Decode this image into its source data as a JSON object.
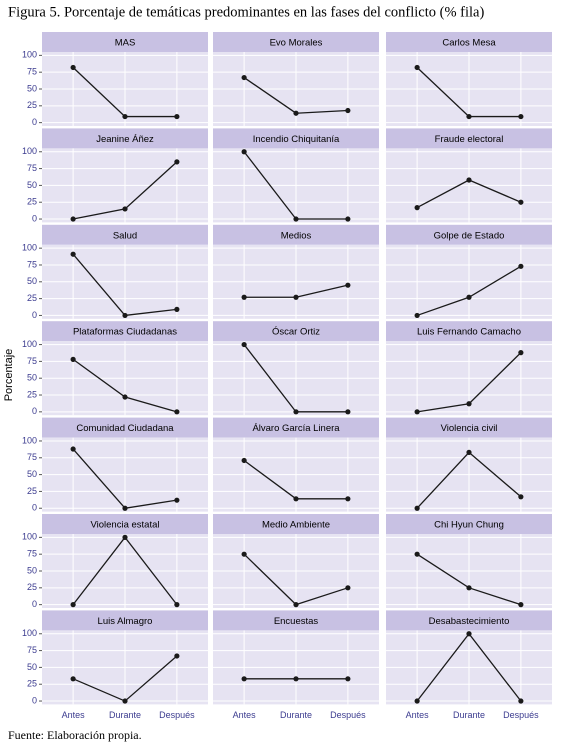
{
  "title": "Figura 5. Porcentaje de temáticas predominantes en las fases del conflicto (% fila)",
  "ylabel": "Porcentaje",
  "source": "Fuente: Elaboración propia.",
  "categories": [
    "Antes",
    "Durante",
    "Después"
  ],
  "ylim": [
    -5,
    105
  ],
  "yticks": [
    0,
    25,
    50,
    75,
    100
  ],
  "grid": true,
  "line_color": "#1a1a1a",
  "chart_data": [
    {
      "type": "line",
      "title": "MAS",
      "values": [
        82,
        9,
        9
      ]
    },
    {
      "type": "line",
      "title": "Evo Morales",
      "values": [
        67,
        14,
        18
      ]
    },
    {
      "type": "line",
      "title": "Carlos Mesa",
      "values": [
        82,
        9,
        9
      ]
    },
    {
      "type": "line",
      "title": "Jeanine Áñez",
      "values": [
        0,
        15,
        85
      ]
    },
    {
      "type": "line",
      "title": "Incendio Chiquitanía",
      "values": [
        100,
        0,
        0
      ]
    },
    {
      "type": "line",
      "title": "Fraude electoral",
      "values": [
        17,
        58,
        25
      ]
    },
    {
      "type": "line",
      "title": "Salud",
      "values": [
        91,
        0,
        9
      ]
    },
    {
      "type": "line",
      "title": "Medios",
      "values": [
        27,
        27,
        45
      ]
    },
    {
      "type": "line",
      "title": "Golpe de Estado",
      "values": [
        0,
        27,
        73
      ]
    },
    {
      "type": "line",
      "title": "Plataformas Ciudadanas",
      "values": [
        78,
        22,
        0
      ]
    },
    {
      "type": "line",
      "title": "Óscar Ortiz",
      "values": [
        100,
        0,
        0
      ]
    },
    {
      "type": "line",
      "title": "Luis Fernando Camacho",
      "values": [
        0,
        12,
        88
      ]
    },
    {
      "type": "line",
      "title": "Comunidad Ciudadana",
      "values": [
        88,
        0,
        12
      ]
    },
    {
      "type": "line",
      "title": "Álvaro García Linera",
      "values": [
        71,
        14,
        14
      ]
    },
    {
      "type": "line",
      "title": "Violencia civil",
      "values": [
        0,
        83,
        17
      ]
    },
    {
      "type": "line",
      "title": "Violencia estatal",
      "values": [
        0,
        100,
        0
      ]
    },
    {
      "type": "line",
      "title": "Medio Ambiente",
      "values": [
        75,
        0,
        25
      ]
    },
    {
      "type": "line",
      "title": "Chi Hyun Chung",
      "values": [
        75,
        25,
        0
      ]
    },
    {
      "type": "line",
      "title": "Luis Almagro",
      "values": [
        33,
        0,
        67
      ]
    },
    {
      "type": "line",
      "title": "Encuestas",
      "values": [
        33,
        33,
        33
      ]
    },
    {
      "type": "line",
      "title": "Desabastecimiento",
      "values": [
        0,
        100,
        0
      ]
    }
  ]
}
